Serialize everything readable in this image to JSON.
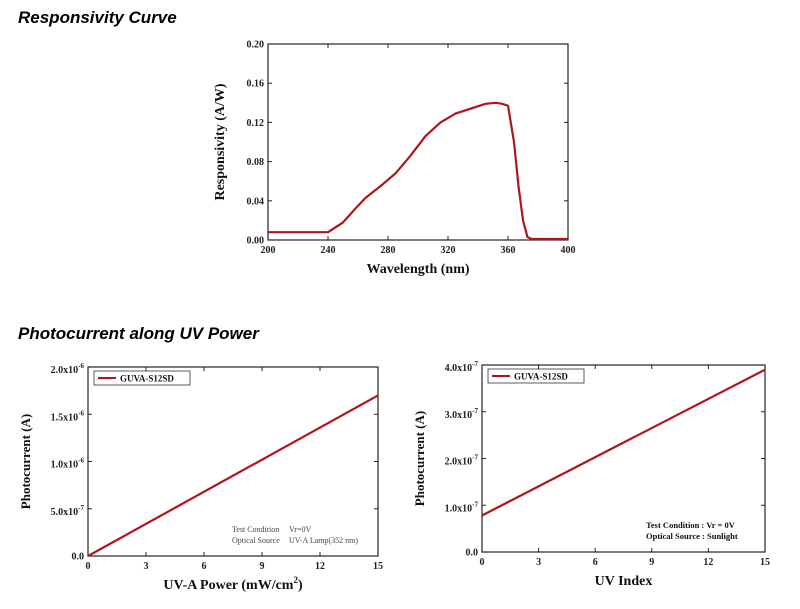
{
  "section_titles": {
    "responsivity": "Responsivity Curve",
    "photocurrent": "Photocurrent along UV Power"
  },
  "chart_data": [
    {
      "id": "responsivity",
      "type": "line",
      "xlabel": "Wavelength (nm)",
      "ylabel": "Responsivity (A/W)",
      "xlim": [
        200,
        400
      ],
      "ylim": [
        0,
        0.2
      ],
      "xticks": [
        200,
        240,
        280,
        320,
        360,
        400
      ],
      "yticks": [
        "0.00",
        "0.04",
        "0.08",
        "0.12",
        "0.16",
        "0.20"
      ],
      "grid": false,
      "color": "#b0141c",
      "series": [
        {
          "x": [
            200,
            220,
            230,
            240,
            250,
            260,
            265,
            275,
            285,
            295,
            305,
            315,
            325,
            335,
            345,
            352,
            356,
            360,
            364,
            367,
            370,
            373,
            376,
            380,
            390,
            400
          ],
          "y": [
            0.008,
            0.008,
            0.008,
            0.008,
            0.018,
            0.035,
            0.043,
            0.055,
            0.068,
            0.086,
            0.106,
            0.12,
            0.129,
            0.134,
            0.139,
            0.14,
            0.139,
            0.137,
            0.1,
            0.055,
            0.02,
            0.003,
            0.001,
            0.001,
            0.001,
            0.001
          ]
        }
      ]
    },
    {
      "id": "uva-power",
      "type": "line",
      "xlabel": "UV-A Power (mW/cm",
      "xlabel_sup": "2",
      "xlabel_tail": ")",
      "ylabel": "Photocurrent (A)",
      "xlim": [
        0,
        15
      ],
      "ylim": [
        0,
        2e-06
      ],
      "xticks": [
        0,
        3,
        6,
        9,
        12,
        15
      ],
      "yticks": [
        {
          "mantissa": "0.0",
          "exp": ""
        },
        {
          "mantissa": "5.0x10",
          "exp": "-7"
        },
        {
          "mantissa": "1.0x10",
          "exp": "-6"
        },
        {
          "mantissa": "1.5x10",
          "exp": "-6"
        },
        {
          "mantissa": "2.0x10",
          "exp": "-6"
        }
      ],
      "legend": "GUVA-S12SD",
      "legend_position": "top-left",
      "grid": false,
      "color": "#b0141c",
      "series": [
        {
          "name": "GUVA-S12SD",
          "x": [
            0,
            15
          ],
          "y": [
            0,
            1.7e-06
          ]
        }
      ],
      "annotations": [
        {
          "label": "Test Condition",
          "value": "Vr=0V"
        },
        {
          "label": "Optical Source",
          "value": "UV-A Lamp(352 nm)"
        }
      ]
    },
    {
      "id": "uv-index",
      "type": "line",
      "xlabel": "UV Index",
      "ylabel": "Photocurrent (A)",
      "xlim": [
        0,
        15
      ],
      "ylim": [
        0,
        4e-07
      ],
      "xticks": [
        0,
        3,
        6,
        9,
        12,
        15
      ],
      "yticks": [
        {
          "mantissa": "0.0",
          "exp": ""
        },
        {
          "mantissa": "1.0x10",
          "exp": "-7"
        },
        {
          "mantissa": "2.0x10",
          "exp": "-7"
        },
        {
          "mantissa": "3.0x10",
          "exp": "-7"
        },
        {
          "mantissa": "4.0x10",
          "exp": "-7"
        }
      ],
      "legend": "GUVA-S12SD",
      "legend_position": "top-left",
      "grid": false,
      "color": "#b0141c",
      "series": [
        {
          "name": "GUVA-S12SD",
          "x": [
            0,
            15
          ],
          "y": [
            7.8e-08,
            3.9e-07
          ]
        }
      ],
      "annotations": [
        {
          "label": "Test Condition : Vr = 0V",
          "value": ""
        },
        {
          "label": "Optical Source : Sunlight",
          "value": ""
        }
      ]
    }
  ]
}
